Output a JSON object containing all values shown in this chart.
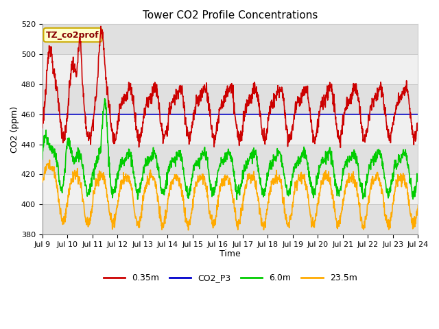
{
  "title": "Tower CO2 Profile Concentrations",
  "xlabel": "Time",
  "ylabel": "CO2 (ppm)",
  "ylim": [
    380,
    520
  ],
  "yticks": [
    380,
    400,
    420,
    440,
    460,
    480,
    500,
    520
  ],
  "xtick_labels": [
    "Jul 9",
    "Jul 10",
    "Jul 11",
    "Jul 12",
    "Jul 13",
    "Jul 14",
    "Jul 15",
    "Jul 16",
    "Jul 17",
    "Jul 18",
    "Jul 19",
    "Jul 20",
    "Jul 21",
    "Jul 22",
    "Jul 23",
    "Jul 24"
  ],
  "colors": {
    "red": "#cc0000",
    "blue": "#0000cc",
    "green": "#00cc00",
    "orange": "#ffaa00"
  },
  "legend_labels": [
    "0.35m",
    "CO2_P3",
    "6.0m",
    "23.5m"
  ],
  "legend_colors": [
    "#cc0000",
    "#0000cc",
    "#00cc00",
    "#ffaa00"
  ],
  "annotation_text": "TZ_co2prof",
  "annotation_box_facecolor": "#ffffcc",
  "annotation_box_edgecolor": "#ccaa00",
  "annotation_text_color": "#880000",
  "gray_band_color": "#e0e0e0",
  "white_band_color": "#f0f0f0",
  "title_fontsize": 11,
  "axis_label_fontsize": 9,
  "tick_fontsize": 8,
  "legend_fontsize": 9,
  "n_days": 15,
  "start_day": 9,
  "line_width": 1.2
}
